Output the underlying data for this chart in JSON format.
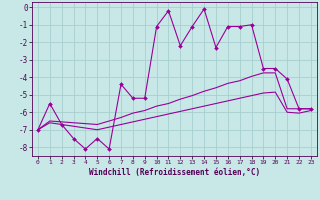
{
  "xlabel": "Windchill (Refroidissement éolien,°C)",
  "bg_color": "#c8e8e8",
  "grid_color": "#a8cece",
  "line_color": "#990099",
  "xlim": [
    -0.5,
    23.5
  ],
  "ylim": [
    -8.5,
    0.3
  ],
  "xtick_vals": [
    0,
    1,
    2,
    3,
    4,
    5,
    6,
    7,
    8,
    9,
    10,
    11,
    12,
    13,
    14,
    15,
    16,
    17,
    18,
    19,
    20,
    21,
    22,
    23
  ],
  "ytick_vals": [
    0,
    -1,
    -2,
    -3,
    -4,
    -5,
    -6,
    -7,
    -8
  ],
  "line1_x": [
    0,
    1,
    2,
    3,
    4,
    5,
    6,
    7,
    8,
    9,
    10,
    11,
    12,
    13,
    14,
    15,
    16,
    17,
    18,
    19,
    20,
    21,
    22,
    23
  ],
  "line1_y": [
    -7.0,
    -5.5,
    -6.7,
    -7.5,
    -8.1,
    -7.5,
    -8.1,
    -4.4,
    -5.2,
    -5.2,
    -1.1,
    -0.2,
    -2.2,
    -1.1,
    -0.1,
    -2.3,
    -1.1,
    -1.1,
    -1.0,
    -3.5,
    -3.5,
    -4.1,
    -5.8,
    -5.8
  ],
  "line2_x": [
    0,
    1,
    2,
    3,
    4,
    5,
    6,
    7,
    8,
    9,
    10,
    11,
    12,
    13,
    14,
    15,
    16,
    17,
    18,
    19,
    20,
    21,
    22,
    23
  ],
  "line2_y": [
    -7.0,
    -6.5,
    -6.55,
    -6.6,
    -6.65,
    -6.7,
    -6.5,
    -6.3,
    -6.05,
    -5.9,
    -5.65,
    -5.5,
    -5.25,
    -5.05,
    -4.8,
    -4.6,
    -4.35,
    -4.2,
    -3.95,
    -3.75,
    -3.75,
    -5.8,
    -5.8,
    -5.8
  ],
  "line3_x": [
    0,
    1,
    2,
    3,
    4,
    5,
    6,
    7,
    8,
    9,
    10,
    11,
    12,
    13,
    14,
    15,
    16,
    17,
    18,
    19,
    20,
    21,
    22,
    23
  ],
  "line3_y": [
    -7.0,
    -6.6,
    -6.7,
    -6.8,
    -6.9,
    -7.0,
    -6.85,
    -6.7,
    -6.55,
    -6.4,
    -6.25,
    -6.1,
    -5.95,
    -5.8,
    -5.65,
    -5.5,
    -5.35,
    -5.2,
    -5.05,
    -4.9,
    -4.85,
    -6.0,
    -6.05,
    -5.9
  ]
}
